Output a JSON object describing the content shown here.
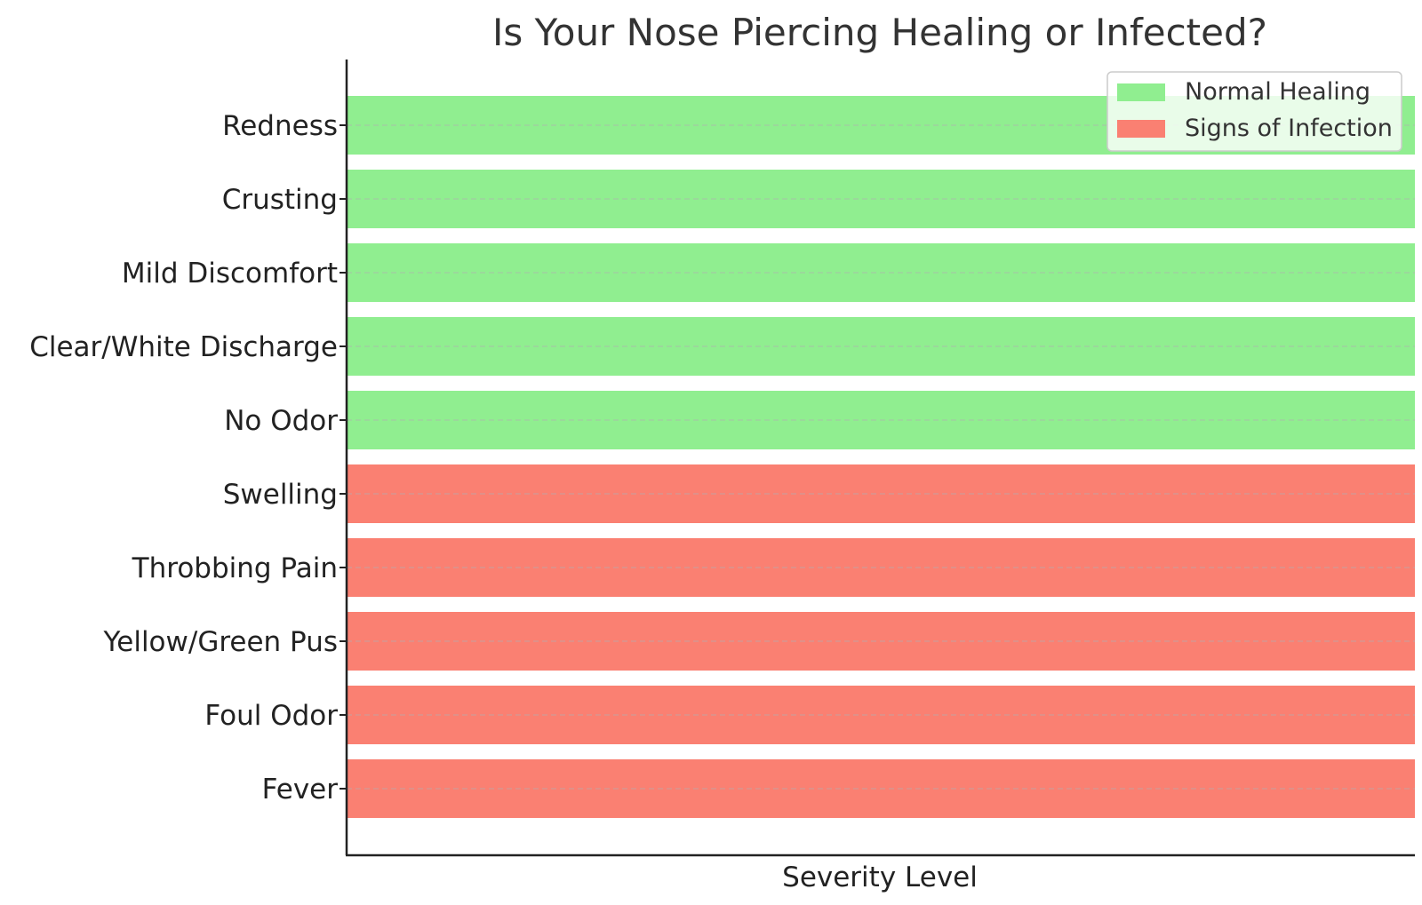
{
  "chart_data": {
    "type": "bar",
    "orientation": "horizontal",
    "title": "Is Your Nose Piercing Healing or Infected?",
    "xlabel": "Severity Level",
    "ylabel": "",
    "categories": [
      "Redness",
      "Crusting",
      "Mild Discomfort",
      "Clear/White Discharge",
      "No Odor",
      "Swelling",
      "Throbbing Pain",
      "Yellow/Green Pus",
      "Foul Odor",
      "Fever"
    ],
    "series": [
      {
        "name": "Normal Healing",
        "color": "#90ee90",
        "values": [
          1,
          1,
          1,
          1,
          1,
          null,
          null,
          null,
          null,
          null
        ]
      },
      {
        "name": "Signs of Infection",
        "color": "#fa8072",
        "values": [
          null,
          null,
          null,
          null,
          null,
          1,
          1,
          1,
          1,
          1
        ]
      }
    ],
    "xlim": [
      0,
      1
    ],
    "x_ticks_shown": false,
    "grid": "horizontal dashed",
    "legend": "top-right"
  }
}
